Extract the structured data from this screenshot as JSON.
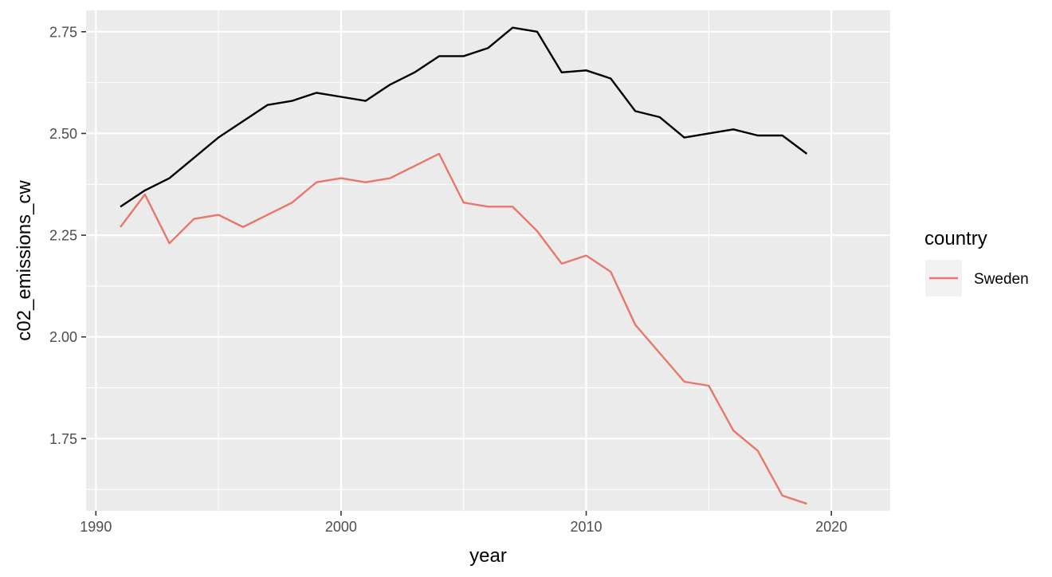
{
  "chart_data": {
    "type": "line",
    "xlabel": "year",
    "ylabel": "c02_emissions_cw",
    "xlim": [
      1989.6,
      2022.4
    ],
    "ylim": [
      1.5725,
      2.8025
    ],
    "x_ticks": [
      1990,
      2000,
      2010,
      2020
    ],
    "x_tick_labels": [
      "1990",
      "2000",
      "2010",
      "2020"
    ],
    "y_ticks": [
      1.75,
      2.0,
      2.25,
      2.5,
      2.75
    ],
    "y_tick_labels": [
      "1.75",
      "2.00",
      "2.25",
      "2.50",
      "2.75"
    ],
    "grid": true,
    "legend": {
      "title": "country",
      "position": "right"
    },
    "x": [
      1991,
      1992,
      1993,
      1994,
      1995,
      1996,
      1997,
      1998,
      1999,
      2000,
      2001,
      2002,
      2003,
      2004,
      2005,
      2006,
      2007,
      2008,
      2009,
      2010,
      2011,
      2012,
      2013,
      2014,
      2015,
      2016,
      2017,
      2018,
      2019
    ],
    "series": [
      {
        "color": "#000000",
        "values": [
          2.32,
          2.36,
          2.39,
          2.44,
          2.49,
          2.53,
          2.57,
          2.58,
          2.6,
          2.59,
          2.58,
          2.62,
          2.65,
          2.69,
          2.69,
          2.71,
          2.76,
          2.75,
          2.65,
          2.655,
          2.635,
          2.555,
          2.54,
          2.49,
          2.5,
          2.51,
          2.495,
          2.495,
          2.45
        ]
      },
      {
        "name": "Sweden",
        "color": "#E8776B",
        "values": [
          2.27,
          2.35,
          2.23,
          2.29,
          2.3,
          2.27,
          2.3,
          2.33,
          2.38,
          2.39,
          2.38,
          2.39,
          2.42,
          2.45,
          2.33,
          2.32,
          2.32,
          2.26,
          2.18,
          2.2,
          2.16,
          2.03,
          1.96,
          1.89,
          1.88,
          1.77,
          1.72,
          1.61,
          1.59
        ]
      }
    ]
  },
  "theme": {
    "panel_background": "#EBEBEB",
    "grid_color": "#FFFFFF",
    "legend_key_background": "#F2F2F2"
  }
}
